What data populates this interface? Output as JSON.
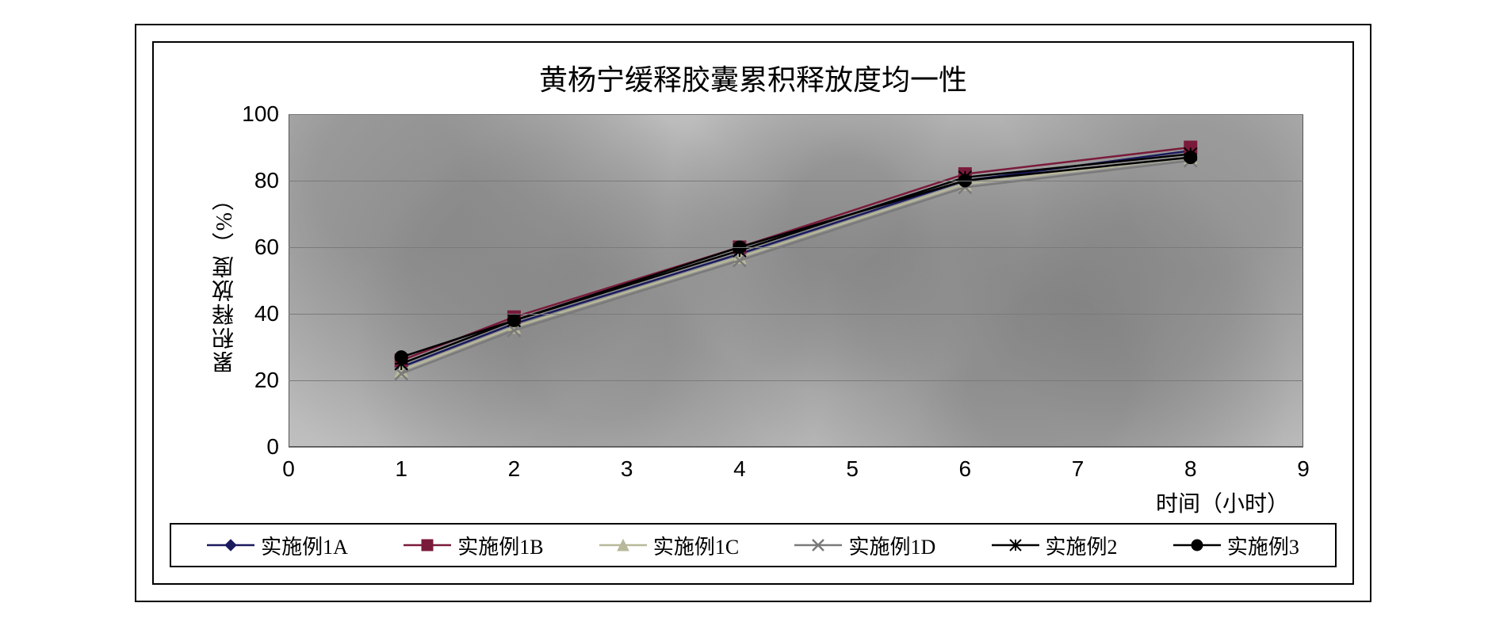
{
  "chart": {
    "type": "line",
    "title": "黄杨宁缓释胶囊累积释放度均一性",
    "title_fontsize": 36,
    "xlabel": "时间（小时）",
    "ylabel": "累积释放度（%）",
    "label_fontsize": 28,
    "tick_fontsize": 28,
    "xlim": [
      0,
      9
    ],
    "ylim": [
      0,
      100
    ],
    "xticks": [
      0,
      1,
      2,
      3,
      4,
      5,
      6,
      7,
      8,
      9
    ],
    "yticks": [
      0,
      20,
      40,
      60,
      80,
      100
    ],
    "grid_color": "#7a7a7a",
    "plot_background_color": "#c0c0c0",
    "frame_color": "#000000",
    "line_width": 2.5,
    "marker_size": 8,
    "series": [
      {
        "name": "实施例1A",
        "marker": "diamond",
        "color": "#1a1a5e",
        "x": [
          1,
          2,
          4,
          6,
          8
        ],
        "y": [
          24,
          37,
          58,
          80,
          89
        ]
      },
      {
        "name": "实施例1B",
        "marker": "square",
        "color": "#7a1a3a",
        "x": [
          1,
          2,
          4,
          6,
          8
        ],
        "y": [
          26,
          39,
          60,
          82,
          90
        ]
      },
      {
        "name": "实施例1C",
        "marker": "triangle",
        "color": "#b8b89a",
        "x": [
          1,
          2,
          4,
          6,
          8
        ],
        "y": [
          23,
          36,
          57,
          79,
          87
        ]
      },
      {
        "name": "实施例1D",
        "marker": "x",
        "color": "#7a7a7a",
        "x": [
          1,
          2,
          4,
          6,
          8
        ],
        "y": [
          22,
          35,
          56,
          78,
          86
        ]
      },
      {
        "name": "实施例2",
        "marker": "asterisk",
        "color": "#000000",
        "x": [
          1,
          2,
          4,
          6,
          8
        ],
        "y": [
          25,
          38,
          59,
          81,
          88
        ]
      },
      {
        "name": "实施例3",
        "marker": "circle-solid",
        "color": "#000000",
        "x": [
          1,
          2,
          4,
          6,
          8
        ],
        "y": [
          27,
          38,
          60,
          80,
          87
        ]
      }
    ],
    "legend": {
      "position": "bottom",
      "border_color": "#000000",
      "fontsize": 26
    }
  }
}
